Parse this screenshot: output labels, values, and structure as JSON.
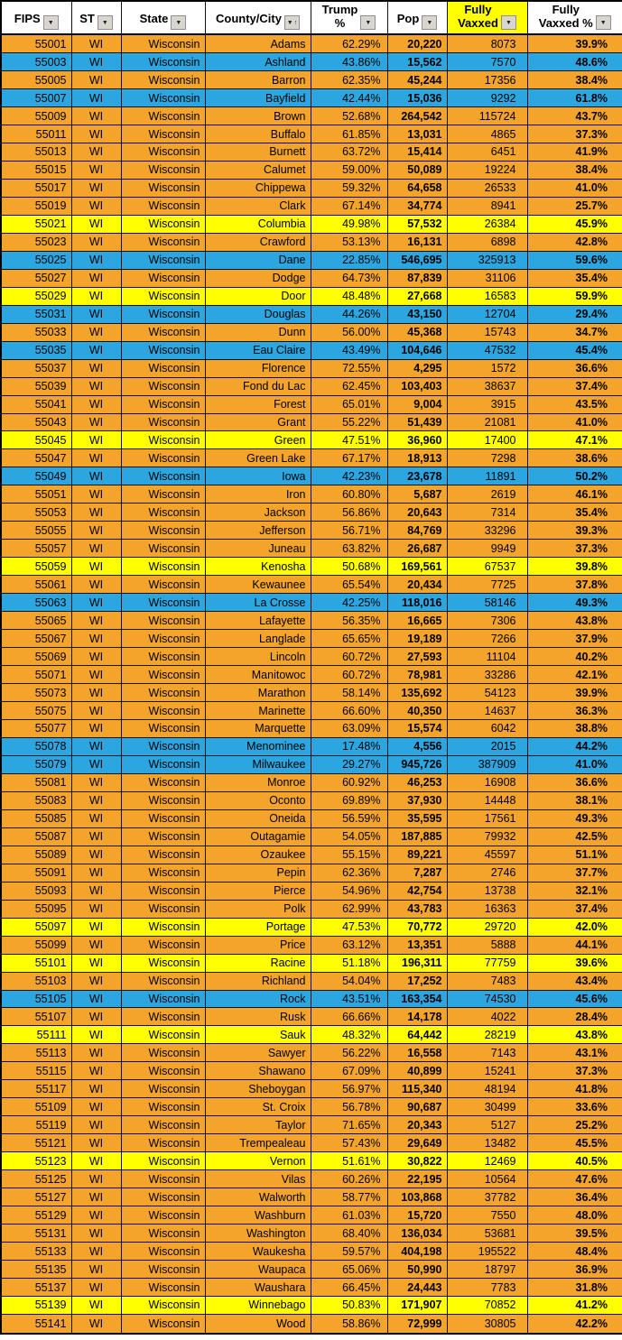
{
  "colors": {
    "band_orange": "#F4A42A",
    "band_blue": "#2CA6E0",
    "band_yellow": "#FFFF00",
    "header_bg": "#FFFFFF",
    "grid_border": "#121212",
    "filter_button_bg": "#D9D6CF"
  },
  "icons": {
    "filter_dropdown": "▼",
    "sort_ascending": "↑"
  },
  "columns": [
    {
      "key": "fips",
      "label": "FIPS"
    },
    {
      "key": "st",
      "label": "ST"
    },
    {
      "key": "state",
      "label": "State"
    },
    {
      "key": "county",
      "label": "County/City"
    },
    {
      "key": "trump_pct",
      "label": "Trump %",
      "line1": "Trump",
      "line2": "%"
    },
    {
      "key": "pop",
      "label": "Pop"
    },
    {
      "key": "vaxxed",
      "label": "Fully Vaxxed",
      "line1": "Fully",
      "line2": "Vaxxed"
    },
    {
      "key": "vaxxed_pct",
      "label": "Fully Vaxxed %",
      "line1": "Fully",
      "line2": "Vaxxed %"
    }
  ],
  "rows": [
    {
      "fips": "55001",
      "st": "WI",
      "state": "Wisconsin",
      "county": "Adams",
      "trump_pct": "62.29%",
      "pop": "20,220",
      "vaxxed": "8073",
      "vaxxed_pct": "39.9%",
      "band": "orange"
    },
    {
      "fips": "55003",
      "st": "WI",
      "state": "Wisconsin",
      "county": "Ashland",
      "trump_pct": "43.86%",
      "pop": "15,562",
      "vaxxed": "7570",
      "vaxxed_pct": "48.6%",
      "band": "blue"
    },
    {
      "fips": "55005",
      "st": "WI",
      "state": "Wisconsin",
      "county": "Barron",
      "trump_pct": "62.35%",
      "pop": "45,244",
      "vaxxed": "17356",
      "vaxxed_pct": "38.4%",
      "band": "orange"
    },
    {
      "fips": "55007",
      "st": "WI",
      "state": "Wisconsin",
      "county": "Bayfield",
      "trump_pct": "42.44%",
      "pop": "15,036",
      "vaxxed": "9292",
      "vaxxed_pct": "61.8%",
      "band": "blue"
    },
    {
      "fips": "55009",
      "st": "WI",
      "state": "Wisconsin",
      "county": "Brown",
      "trump_pct": "52.68%",
      "pop": "264,542",
      "vaxxed": "115724",
      "vaxxed_pct": "43.7%",
      "band": "orange"
    },
    {
      "fips": "55011",
      "st": "WI",
      "state": "Wisconsin",
      "county": "Buffalo",
      "trump_pct": "61.85%",
      "pop": "13,031",
      "vaxxed": "4865",
      "vaxxed_pct": "37.3%",
      "band": "orange"
    },
    {
      "fips": "55013",
      "st": "WI",
      "state": "Wisconsin",
      "county": "Burnett",
      "trump_pct": "63.72%",
      "pop": "15,414",
      "vaxxed": "6451",
      "vaxxed_pct": "41.9%",
      "band": "orange"
    },
    {
      "fips": "55015",
      "st": "WI",
      "state": "Wisconsin",
      "county": "Calumet",
      "trump_pct": "59.00%",
      "pop": "50,089",
      "vaxxed": "19224",
      "vaxxed_pct": "38.4%",
      "band": "orange"
    },
    {
      "fips": "55017",
      "st": "WI",
      "state": "Wisconsin",
      "county": "Chippewa",
      "trump_pct": "59.32%",
      "pop": "64,658",
      "vaxxed": "26533",
      "vaxxed_pct": "41.0%",
      "band": "orange"
    },
    {
      "fips": "55019",
      "st": "WI",
      "state": "Wisconsin",
      "county": "Clark",
      "trump_pct": "67.14%",
      "pop": "34,774",
      "vaxxed": "8941",
      "vaxxed_pct": "25.7%",
      "band": "orange"
    },
    {
      "fips": "55021",
      "st": "WI",
      "state": "Wisconsin",
      "county": "Columbia",
      "trump_pct": "49.98%",
      "pop": "57,532",
      "vaxxed": "26384",
      "vaxxed_pct": "45.9%",
      "band": "yellow"
    },
    {
      "fips": "55023",
      "st": "WI",
      "state": "Wisconsin",
      "county": "Crawford",
      "trump_pct": "53.13%",
      "pop": "16,131",
      "vaxxed": "6898",
      "vaxxed_pct": "42.8%",
      "band": "orange"
    },
    {
      "fips": "55025",
      "st": "WI",
      "state": "Wisconsin",
      "county": "Dane",
      "trump_pct": "22.85%",
      "pop": "546,695",
      "vaxxed": "325913",
      "vaxxed_pct": "59.6%",
      "band": "blue"
    },
    {
      "fips": "55027",
      "st": "WI",
      "state": "Wisconsin",
      "county": "Dodge",
      "trump_pct": "64.73%",
      "pop": "87,839",
      "vaxxed": "31106",
      "vaxxed_pct": "35.4%",
      "band": "orange"
    },
    {
      "fips": "55029",
      "st": "WI",
      "state": "Wisconsin",
      "county": "Door",
      "trump_pct": "48.48%",
      "pop": "27,668",
      "vaxxed": "16583",
      "vaxxed_pct": "59.9%",
      "band": "yellow"
    },
    {
      "fips": "55031",
      "st": "WI",
      "state": "Wisconsin",
      "county": "Douglas",
      "trump_pct": "44.26%",
      "pop": "43,150",
      "vaxxed": "12704",
      "vaxxed_pct": "29.4%",
      "band": "blue"
    },
    {
      "fips": "55033",
      "st": "WI",
      "state": "Wisconsin",
      "county": "Dunn",
      "trump_pct": "56.00%",
      "pop": "45,368",
      "vaxxed": "15743",
      "vaxxed_pct": "34.7%",
      "band": "orange"
    },
    {
      "fips": "55035",
      "st": "WI",
      "state": "Wisconsin",
      "county": "Eau Claire",
      "trump_pct": "43.49%",
      "pop": "104,646",
      "vaxxed": "47532",
      "vaxxed_pct": "45.4%",
      "band": "blue"
    },
    {
      "fips": "55037",
      "st": "WI",
      "state": "Wisconsin",
      "county": "Florence",
      "trump_pct": "72.55%",
      "pop": "4,295",
      "vaxxed": "1572",
      "vaxxed_pct": "36.6%",
      "band": "orange"
    },
    {
      "fips": "55039",
      "st": "WI",
      "state": "Wisconsin",
      "county": "Fond du Lac",
      "trump_pct": "62.45%",
      "pop": "103,403",
      "vaxxed": "38637",
      "vaxxed_pct": "37.4%",
      "band": "orange"
    },
    {
      "fips": "55041",
      "st": "WI",
      "state": "Wisconsin",
      "county": "Forest",
      "trump_pct": "65.01%",
      "pop": "9,004",
      "vaxxed": "3915",
      "vaxxed_pct": "43.5%",
      "band": "orange"
    },
    {
      "fips": "55043",
      "st": "WI",
      "state": "Wisconsin",
      "county": "Grant",
      "trump_pct": "55.22%",
      "pop": "51,439",
      "vaxxed": "21081",
      "vaxxed_pct": "41.0%",
      "band": "orange"
    },
    {
      "fips": "55045",
      "st": "WI",
      "state": "Wisconsin",
      "county": "Green",
      "trump_pct": "47.51%",
      "pop": "36,960",
      "vaxxed": "17400",
      "vaxxed_pct": "47.1%",
      "band": "yellow"
    },
    {
      "fips": "55047",
      "st": "WI",
      "state": "Wisconsin",
      "county": "Green Lake",
      "trump_pct": "67.17%",
      "pop": "18,913",
      "vaxxed": "7298",
      "vaxxed_pct": "38.6%",
      "band": "orange"
    },
    {
      "fips": "55049",
      "st": "WI",
      "state": "Wisconsin",
      "county": "Iowa",
      "trump_pct": "42.23%",
      "pop": "23,678",
      "vaxxed": "11891",
      "vaxxed_pct": "50.2%",
      "band": "blue"
    },
    {
      "fips": "55051",
      "st": "WI",
      "state": "Wisconsin",
      "county": "Iron",
      "trump_pct": "60.80%",
      "pop": "5,687",
      "vaxxed": "2619",
      "vaxxed_pct": "46.1%",
      "band": "orange"
    },
    {
      "fips": "55053",
      "st": "WI",
      "state": "Wisconsin",
      "county": "Jackson",
      "trump_pct": "56.86%",
      "pop": "20,643",
      "vaxxed": "7314",
      "vaxxed_pct": "35.4%",
      "band": "orange"
    },
    {
      "fips": "55055",
      "st": "WI",
      "state": "Wisconsin",
      "county": "Jefferson",
      "trump_pct": "56.71%",
      "pop": "84,769",
      "vaxxed": "33296",
      "vaxxed_pct": "39.3%",
      "band": "orange"
    },
    {
      "fips": "55057",
      "st": "WI",
      "state": "Wisconsin",
      "county": "Juneau",
      "trump_pct": "63.82%",
      "pop": "26,687",
      "vaxxed": "9949",
      "vaxxed_pct": "37.3%",
      "band": "orange"
    },
    {
      "fips": "55059",
      "st": "WI",
      "state": "Wisconsin",
      "county": "Kenosha",
      "trump_pct": "50.68%",
      "pop": "169,561",
      "vaxxed": "67537",
      "vaxxed_pct": "39.8%",
      "band": "yellow"
    },
    {
      "fips": "55061",
      "st": "WI",
      "state": "Wisconsin",
      "county": "Kewaunee",
      "trump_pct": "65.54%",
      "pop": "20,434",
      "vaxxed": "7725",
      "vaxxed_pct": "37.8%",
      "band": "orange"
    },
    {
      "fips": "55063",
      "st": "WI",
      "state": "Wisconsin",
      "county": "La Crosse",
      "trump_pct": "42.25%",
      "pop": "118,016",
      "vaxxed": "58146",
      "vaxxed_pct": "49.3%",
      "band": "blue"
    },
    {
      "fips": "55065",
      "st": "WI",
      "state": "Wisconsin",
      "county": "Lafayette",
      "trump_pct": "56.35%",
      "pop": "16,665",
      "vaxxed": "7306",
      "vaxxed_pct": "43.8%",
      "band": "orange"
    },
    {
      "fips": "55067",
      "st": "WI",
      "state": "Wisconsin",
      "county": "Langlade",
      "trump_pct": "65.65%",
      "pop": "19,189",
      "vaxxed": "7266",
      "vaxxed_pct": "37.9%",
      "band": "orange"
    },
    {
      "fips": "55069",
      "st": "WI",
      "state": "Wisconsin",
      "county": "Lincoln",
      "trump_pct": "60.72%",
      "pop": "27,593",
      "vaxxed": "11104",
      "vaxxed_pct": "40.2%",
      "band": "orange"
    },
    {
      "fips": "55071",
      "st": "WI",
      "state": "Wisconsin",
      "county": "Manitowoc",
      "trump_pct": "60.72%",
      "pop": "78,981",
      "vaxxed": "33286",
      "vaxxed_pct": "42.1%",
      "band": "orange"
    },
    {
      "fips": "55073",
      "st": "WI",
      "state": "Wisconsin",
      "county": "Marathon",
      "trump_pct": "58.14%",
      "pop": "135,692",
      "vaxxed": "54123",
      "vaxxed_pct": "39.9%",
      "band": "orange"
    },
    {
      "fips": "55075",
      "st": "WI",
      "state": "Wisconsin",
      "county": "Marinette",
      "trump_pct": "66.60%",
      "pop": "40,350",
      "vaxxed": "14637",
      "vaxxed_pct": "36.3%",
      "band": "orange"
    },
    {
      "fips": "55077",
      "st": "WI",
      "state": "Wisconsin",
      "county": "Marquette",
      "trump_pct": "63.09%",
      "pop": "15,574",
      "vaxxed": "6042",
      "vaxxed_pct": "38.8%",
      "band": "orange"
    },
    {
      "fips": "55078",
      "st": "WI",
      "state": "Wisconsin",
      "county": "Menominee",
      "trump_pct": "17.48%",
      "pop": "4,556",
      "vaxxed": "2015",
      "vaxxed_pct": "44.2%",
      "band": "blue"
    },
    {
      "fips": "55079",
      "st": "WI",
      "state": "Wisconsin",
      "county": "Milwaukee",
      "trump_pct": "29.27%",
      "pop": "945,726",
      "vaxxed": "387909",
      "vaxxed_pct": "41.0%",
      "band": "blue"
    },
    {
      "fips": "55081",
      "st": "WI",
      "state": "Wisconsin",
      "county": "Monroe",
      "trump_pct": "60.92%",
      "pop": "46,253",
      "vaxxed": "16908",
      "vaxxed_pct": "36.6%",
      "band": "orange"
    },
    {
      "fips": "55083",
      "st": "WI",
      "state": "Wisconsin",
      "county": "Oconto",
      "trump_pct": "69.89%",
      "pop": "37,930",
      "vaxxed": "14448",
      "vaxxed_pct": "38.1%",
      "band": "orange"
    },
    {
      "fips": "55085",
      "st": "WI",
      "state": "Wisconsin",
      "county": "Oneida",
      "trump_pct": "56.59%",
      "pop": "35,595",
      "vaxxed": "17561",
      "vaxxed_pct": "49.3%",
      "band": "orange"
    },
    {
      "fips": "55087",
      "st": "WI",
      "state": "Wisconsin",
      "county": "Outagamie",
      "trump_pct": "54.05%",
      "pop": "187,885",
      "vaxxed": "79932",
      "vaxxed_pct": "42.5%",
      "band": "orange"
    },
    {
      "fips": "55089",
      "st": "WI",
      "state": "Wisconsin",
      "county": "Ozaukee",
      "trump_pct": "55.15%",
      "pop": "89,221",
      "vaxxed": "45597",
      "vaxxed_pct": "51.1%",
      "band": "orange"
    },
    {
      "fips": "55091",
      "st": "WI",
      "state": "Wisconsin",
      "county": "Pepin",
      "trump_pct": "62.36%",
      "pop": "7,287",
      "vaxxed": "2746",
      "vaxxed_pct": "37.7%",
      "band": "orange"
    },
    {
      "fips": "55093",
      "st": "WI",
      "state": "Wisconsin",
      "county": "Pierce",
      "trump_pct": "54.96%",
      "pop": "42,754",
      "vaxxed": "13738",
      "vaxxed_pct": "32.1%",
      "band": "orange"
    },
    {
      "fips": "55095",
      "st": "WI",
      "state": "Wisconsin",
      "county": "Polk",
      "trump_pct": "62.99%",
      "pop": "43,783",
      "vaxxed": "16363",
      "vaxxed_pct": "37.4%",
      "band": "orange"
    },
    {
      "fips": "55097",
      "st": "WI",
      "state": "Wisconsin",
      "county": "Portage",
      "trump_pct": "47.53%",
      "pop": "70,772",
      "vaxxed": "29720",
      "vaxxed_pct": "42.0%",
      "band": "yellow"
    },
    {
      "fips": "55099",
      "st": "WI",
      "state": "Wisconsin",
      "county": "Price",
      "trump_pct": "63.12%",
      "pop": "13,351",
      "vaxxed": "5888",
      "vaxxed_pct": "44.1%",
      "band": "orange"
    },
    {
      "fips": "55101",
      "st": "WI",
      "state": "Wisconsin",
      "county": "Racine",
      "trump_pct": "51.18%",
      "pop": "196,311",
      "vaxxed": "77759",
      "vaxxed_pct": "39.6%",
      "band": "yellow"
    },
    {
      "fips": "55103",
      "st": "WI",
      "state": "Wisconsin",
      "county": "Richland",
      "trump_pct": "54.04%",
      "pop": "17,252",
      "vaxxed": "7483",
      "vaxxed_pct": "43.4%",
      "band": "orange"
    },
    {
      "fips": "55105",
      "st": "WI",
      "state": "Wisconsin",
      "county": "Rock",
      "trump_pct": "43.51%",
      "pop": "163,354",
      "vaxxed": "74530",
      "vaxxed_pct": "45.6%",
      "band": "blue"
    },
    {
      "fips": "55107",
      "st": "WI",
      "state": "Wisconsin",
      "county": "Rusk",
      "trump_pct": "66.66%",
      "pop": "14,178",
      "vaxxed": "4022",
      "vaxxed_pct": "28.4%",
      "band": "orange"
    },
    {
      "fips": "55111",
      "st": "WI",
      "state": "Wisconsin",
      "county": "Sauk",
      "trump_pct": "48.32%",
      "pop": "64,442",
      "vaxxed": "28219",
      "vaxxed_pct": "43.8%",
      "band": "yellow"
    },
    {
      "fips": "55113",
      "st": "WI",
      "state": "Wisconsin",
      "county": "Sawyer",
      "trump_pct": "56.22%",
      "pop": "16,558",
      "vaxxed": "7143",
      "vaxxed_pct": "43.1%",
      "band": "orange"
    },
    {
      "fips": "55115",
      "st": "WI",
      "state": "Wisconsin",
      "county": "Shawano",
      "trump_pct": "67.09%",
      "pop": "40,899",
      "vaxxed": "15241",
      "vaxxed_pct": "37.3%",
      "band": "orange"
    },
    {
      "fips": "55117",
      "st": "WI",
      "state": "Wisconsin",
      "county": "Sheboygan",
      "trump_pct": "56.97%",
      "pop": "115,340",
      "vaxxed": "48194",
      "vaxxed_pct": "41.8%",
      "band": "orange"
    },
    {
      "fips": "55109",
      "st": "WI",
      "state": "Wisconsin",
      "county": "St. Croix",
      "trump_pct": "56.78%",
      "pop": "90,687",
      "vaxxed": "30499",
      "vaxxed_pct": "33.6%",
      "band": "orange"
    },
    {
      "fips": "55119",
      "st": "WI",
      "state": "Wisconsin",
      "county": "Taylor",
      "trump_pct": "71.65%",
      "pop": "20,343",
      "vaxxed": "5127",
      "vaxxed_pct": "25.2%",
      "band": "orange"
    },
    {
      "fips": "55121",
      "st": "WI",
      "state": "Wisconsin",
      "county": "Trempealeau",
      "trump_pct": "57.43%",
      "pop": "29,649",
      "vaxxed": "13482",
      "vaxxed_pct": "45.5%",
      "band": "orange"
    },
    {
      "fips": "55123",
      "st": "WI",
      "state": "Wisconsin",
      "county": "Vernon",
      "trump_pct": "51.61%",
      "pop": "30,822",
      "vaxxed": "12469",
      "vaxxed_pct": "40.5%",
      "band": "yellow"
    },
    {
      "fips": "55125",
      "st": "WI",
      "state": "Wisconsin",
      "county": "Vilas",
      "trump_pct": "60.26%",
      "pop": "22,195",
      "vaxxed": "10564",
      "vaxxed_pct": "47.6%",
      "band": "orange"
    },
    {
      "fips": "55127",
      "st": "WI",
      "state": "Wisconsin",
      "county": "Walworth",
      "trump_pct": "58.77%",
      "pop": "103,868",
      "vaxxed": "37782",
      "vaxxed_pct": "36.4%",
      "band": "orange"
    },
    {
      "fips": "55129",
      "st": "WI",
      "state": "Wisconsin",
      "county": "Washburn",
      "trump_pct": "61.03%",
      "pop": "15,720",
      "vaxxed": "7550",
      "vaxxed_pct": "48.0%",
      "band": "orange"
    },
    {
      "fips": "55131",
      "st": "WI",
      "state": "Wisconsin",
      "county": "Washington",
      "trump_pct": "68.40%",
      "pop": "136,034",
      "vaxxed": "53681",
      "vaxxed_pct": "39.5%",
      "band": "orange"
    },
    {
      "fips": "55133",
      "st": "WI",
      "state": "Wisconsin",
      "county": "Waukesha",
      "trump_pct": "59.57%",
      "pop": "404,198",
      "vaxxed": "195522",
      "vaxxed_pct": "48.4%",
      "band": "orange"
    },
    {
      "fips": "55135",
      "st": "WI",
      "state": "Wisconsin",
      "county": "Waupaca",
      "trump_pct": "65.06%",
      "pop": "50,990",
      "vaxxed": "18797",
      "vaxxed_pct": "36.9%",
      "band": "orange"
    },
    {
      "fips": "55137",
      "st": "WI",
      "state": "Wisconsin",
      "county": "Waushara",
      "trump_pct": "66.45%",
      "pop": "24,443",
      "vaxxed": "7783",
      "vaxxed_pct": "31.8%",
      "band": "orange"
    },
    {
      "fips": "55139",
      "st": "WI",
      "state": "Wisconsin",
      "county": "Winnebago",
      "trump_pct": "50.83%",
      "pop": "171,907",
      "vaxxed": "70852",
      "vaxxed_pct": "41.2%",
      "band": "yellow"
    },
    {
      "fips": "55141",
      "st": "WI",
      "state": "Wisconsin",
      "county": "Wood",
      "trump_pct": "58.86%",
      "pop": "72,999",
      "vaxxed": "30805",
      "vaxxed_pct": "42.2%",
      "band": "orange"
    }
  ]
}
